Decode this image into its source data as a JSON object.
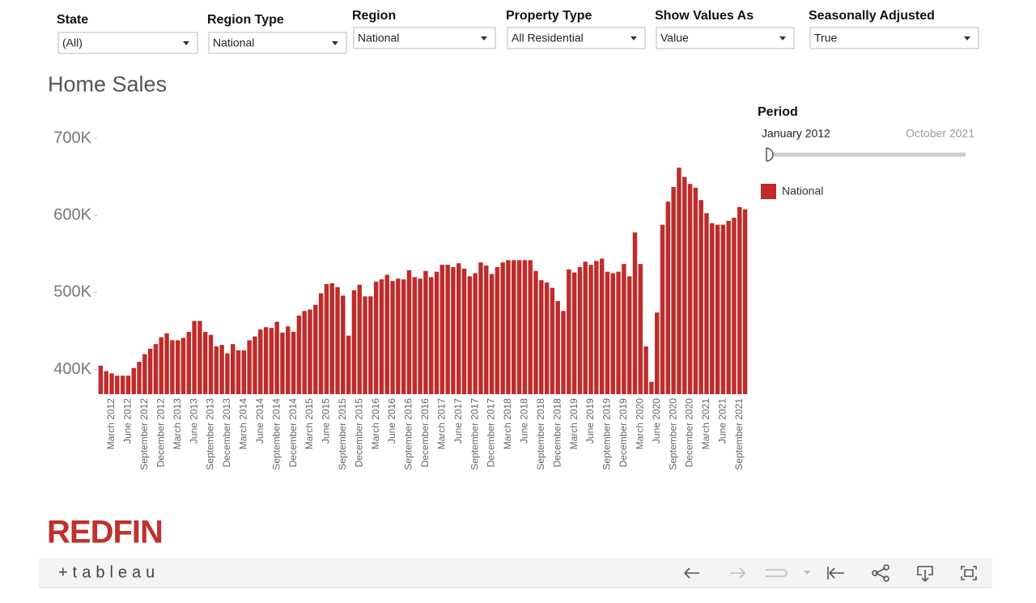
{
  "filters": [
    {
      "label": "State",
      "value": "(All)"
    },
    {
      "label": "Region Type",
      "value": "National"
    },
    {
      "label": "Region",
      "value": "National"
    },
    {
      "label": "Property Type",
      "value": "All Residential"
    },
    {
      "label": "Show Values As",
      "value": "Value"
    },
    {
      "label": "Seasonally Adjusted",
      "value": "True"
    }
  ],
  "period_filter": {
    "title": "Period",
    "start": "January 2012",
    "end": "October 2021"
  },
  "brand": "REDFIN",
  "toolbar": {
    "logo": "+tableau"
  },
  "chart_data": {
    "type": "bar",
    "title": "Home Sales",
    "categories": [
      null,
      null,
      "March 2012",
      null,
      null,
      "June 2012",
      null,
      null,
      "September 2012",
      null,
      null,
      "December 2012",
      null,
      null,
      "March 2013",
      null,
      null,
      "June 2013",
      null,
      null,
      "September 2013",
      null,
      null,
      "December 2013",
      null,
      null,
      "March 2014",
      null,
      null,
      "June 2014",
      null,
      null,
      "September 2014",
      null,
      null,
      "December 2014",
      null,
      null,
      "March 2015",
      null,
      null,
      "June 2015",
      null,
      null,
      "September 2015",
      null,
      null,
      "December 2015",
      null,
      null,
      "March 2016",
      null,
      null,
      "June 2016",
      null,
      null,
      "September 2016",
      null,
      null,
      "December 2016",
      null,
      null,
      "March 2017",
      null,
      null,
      "June 2017",
      null,
      null,
      "September 2017",
      null,
      null,
      "December 2017",
      null,
      null,
      "March 2018",
      null,
      null,
      "June 2018",
      null,
      null,
      "September 2018",
      null,
      null,
      "December 2018",
      null,
      null,
      "March 2019",
      null,
      null,
      "June 2019",
      null,
      null,
      "September 2019",
      null,
      null,
      "December 2019",
      null,
      null,
      "March 2020",
      null,
      null,
      "June 2020",
      null,
      null,
      "September 2020",
      null,
      null,
      "December 2020",
      null,
      null,
      "March 2021",
      null,
      null,
      "June 2021",
      null,
      null,
      "September 2021",
      null
    ],
    "series": [
      {
        "name": "National",
        "color": "#bf2c2a",
        "values": [
          405000,
          398000,
          395000,
          392000,
          392000,
          392000,
          402000,
          410000,
          420000,
          427000,
          433000,
          442000,
          447000,
          438000,
          438000,
          441000,
          449000,
          463000,
          463000,
          449000,
          445000,
          430000,
          432000,
          421000,
          433000,
          425000,
          425000,
          438000,
          443000,
          452000,
          455000,
          454000,
          462000,
          448000,
          456000,
          449000,
          470000,
          476000,
          478000,
          484000,
          499000,
          511000,
          512000,
          507000,
          496000,
          444000,
          503000,
          510000,
          495000,
          495000,
          514000,
          517000,
          523000,
          515000,
          518000,
          517000,
          529000,
          520000,
          518000,
          528000,
          520000,
          527000,
          536000,
          536000,
          533000,
          538000,
          531000,
          521000,
          525000,
          539000,
          535000,
          524000,
          533000,
          539000,
          542000,
          542000,
          542000,
          542000,
          542000,
          528000,
          516000,
          513000,
          506000,
          489000,
          476000,
          530000,
          526000,
          533000,
          540000,
          536000,
          541000,
          544000,
          527000,
          525000,
          527000,
          537000,
          521000,
          578000,
          537000,
          430000,
          384000,
          474000,
          588000,
          618000,
          637000,
          662000,
          650000,
          641000,
          636000,
          620000,
          603000,
          590000,
          588000,
          588000,
          593000,
          597000,
          611000,
          608000
        ]
      }
    ],
    "ylim": [
      368000,
      720000
    ],
    "yticks": [
      {
        "value": 400000,
        "label": "400K"
      },
      {
        "value": 500000,
        "label": "500K"
      },
      {
        "value": 600000,
        "label": "600K"
      },
      {
        "value": 700000,
        "label": "700K"
      }
    ],
    "grid": false
  }
}
